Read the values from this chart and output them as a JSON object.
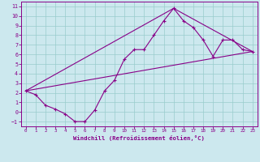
{
  "bg_color": "#cce8ee",
  "line_color": "#880088",
  "grid_color": "#99cccc",
  "xlabel": "Windchill (Refroidissement éolien,°C)",
  "xlabel_color": "#880088",
  "xlim": [
    -0.5,
    23.5
  ],
  "ylim": [
    -1.5,
    11.5
  ],
  "xticks": [
    0,
    1,
    2,
    3,
    4,
    5,
    6,
    7,
    8,
    9,
    10,
    11,
    12,
    13,
    14,
    15,
    16,
    17,
    18,
    19,
    20,
    21,
    22,
    23
  ],
  "yticks": [
    -1,
    0,
    1,
    2,
    3,
    4,
    5,
    6,
    7,
    8,
    9,
    10,
    11
  ],
  "curve1_x": [
    0,
    1,
    2,
    3,
    4,
    5,
    6,
    7,
    8,
    9,
    10,
    11,
    12,
    13,
    14,
    15,
    16,
    17,
    18,
    19,
    20,
    21,
    22,
    23
  ],
  "curve1_y": [
    2.2,
    1.8,
    0.7,
    0.3,
    -0.2,
    -1.0,
    -1.0,
    0.2,
    2.2,
    3.3,
    5.5,
    6.5,
    6.5,
    8.0,
    9.5,
    10.8,
    9.5,
    8.8,
    7.5,
    5.8,
    7.5,
    7.5,
    6.5,
    6.3
  ],
  "curve2_x": [
    0,
    23
  ],
  "curve2_y": [
    2.2,
    6.3
  ],
  "curve3_x": [
    0,
    15,
    23
  ],
  "curve3_y": [
    2.2,
    10.8,
    6.3
  ]
}
